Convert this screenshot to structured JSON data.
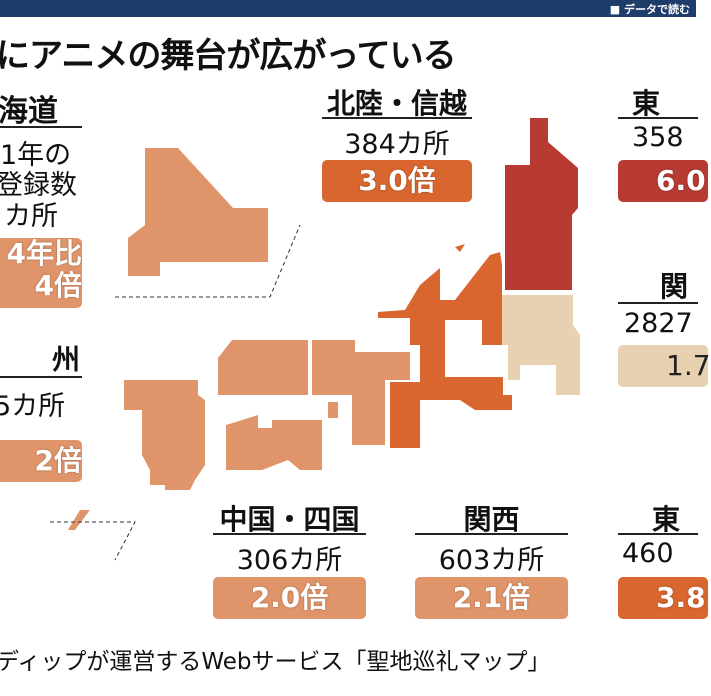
{
  "header": {
    "label": "■ データで読む"
  },
  "title": "にアニメの舞台が広がっている",
  "colors": {
    "light": "#e0946a",
    "mid": "#d8662e",
    "dark": "#b73a33",
    "beige": "#e8d1b1",
    "header": "#1f3d6b"
  },
  "legend": {
    "region": "海道",
    "line1": "1年の",
    "line2": "登録数",
    "line3": "カ所",
    "ratio_label": "4年比",
    "ratio": "4倍"
  },
  "regions": {
    "hokuriku": {
      "name": "北陸・信越",
      "count": "384カ所",
      "ratio": "3.0倍"
    },
    "tohoku": {
      "name": "東",
      "count": "358",
      "ratio": "6.0"
    },
    "kanto": {
      "name": "関",
      "count": "2827",
      "ratio": "1.7"
    },
    "kyushu": {
      "name": "州",
      "count": "5カ所",
      "ratio": "2倍"
    },
    "chugoku": {
      "name": "中国・四国",
      "count": "306カ所",
      "ratio": "2.0倍"
    },
    "kansai": {
      "name": "関西",
      "count": "603カ所",
      "ratio": "2.1倍"
    },
    "tokai": {
      "name": "東",
      "count": "460",
      "ratio": "3.8"
    }
  },
  "source": "ディップが運営するWebサービス「聖地巡礼マップ」"
}
